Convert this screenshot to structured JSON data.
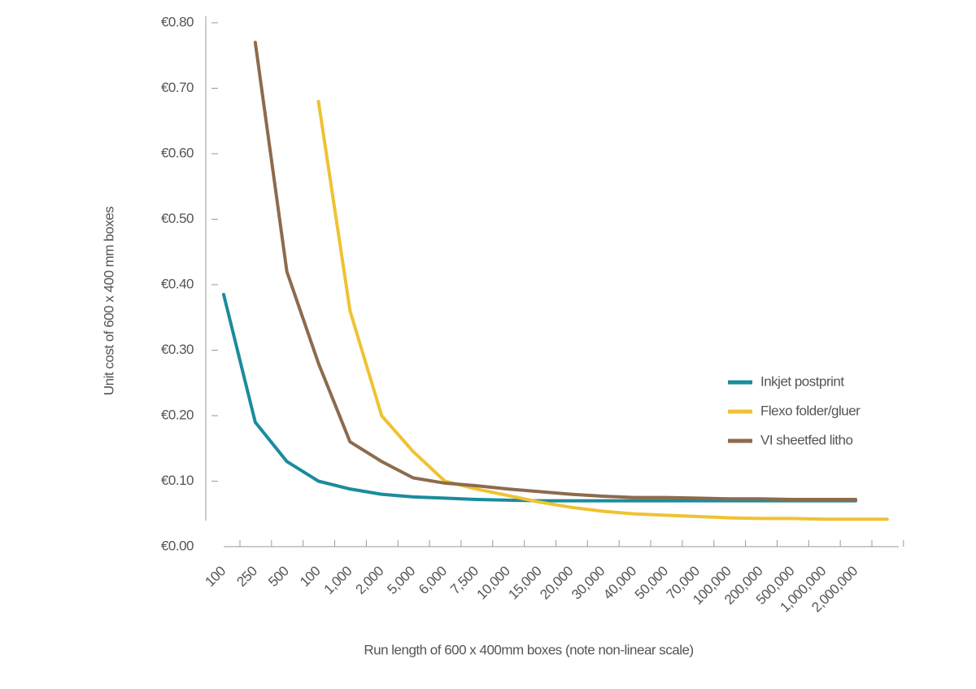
{
  "chart_data": {
    "type": "line",
    "y_label": "Unit cost of 600 x 400 mm boxes",
    "x_label": "Run length of 600 x 400mm boxes (note non-linear scale)",
    "categories": [
      "100",
      "250",
      "500",
      "100",
      "1,000",
      "2,000",
      "5,000",
      "6,000",
      "7,500",
      "10,000",
      "15,000",
      "20,000",
      "30,000",
      "40,000",
      "50,000",
      "70,000",
      "100,000",
      "200,000",
      "500,000",
      "1,000,000",
      "2,000,000",
      null
    ],
    "series": [
      {
        "name": "Inkjet postprint",
        "color": "#1a8c9c",
        "values": [
          0.385,
          0.19,
          0.13,
          0.1,
          0.088,
          0.08,
          0.076,
          0.074,
          0.072,
          0.071,
          0.07,
          0.07,
          0.07,
          0.07,
          0.07,
          0.07,
          0.07,
          0.07,
          0.07,
          0.07,
          0.07,
          null
        ]
      },
      {
        "name": "Flexo folder/gluer",
        "color": "#f0c232",
        "values": [
          null,
          null,
          null,
          0.68,
          0.36,
          0.2,
          0.145,
          0.1,
          0.088,
          0.078,
          0.068,
          0.06,
          0.054,
          0.05,
          0.048,
          0.046,
          0.044,
          0.043,
          0.043,
          0.042,
          0.042,
          0.042
        ]
      },
      {
        "name": "VI sheetfed litho",
        "color": "#8c6b4c",
        "values": [
          null,
          0.77,
          0.42,
          0.28,
          0.16,
          0.13,
          0.105,
          0.097,
          0.093,
          0.088,
          0.084,
          0.08,
          0.077,
          0.075,
          0.075,
          0.074,
          0.073,
          0.073,
          0.072,
          0.072,
          0.072,
          null
        ]
      }
    ],
    "ylim": [
      0,
      0.8
    ],
    "yticks": [
      {
        "value": 0,
        "label": "€0.00"
      },
      {
        "value": 0.1,
        "label": "€0.10"
      },
      {
        "value": 0.2,
        "label": "€0.20"
      },
      {
        "value": 0.3,
        "label": "€0.30"
      },
      {
        "value": 0.4,
        "label": "€0.40"
      },
      {
        "value": 0.5,
        "label": "€0.50"
      },
      {
        "value": 0.6,
        "label": "€0.60"
      },
      {
        "value": 0.7,
        "label": "€0.70"
      },
      {
        "value": 0.8,
        "label": "€0.80"
      }
    ],
    "legend": "right"
  }
}
